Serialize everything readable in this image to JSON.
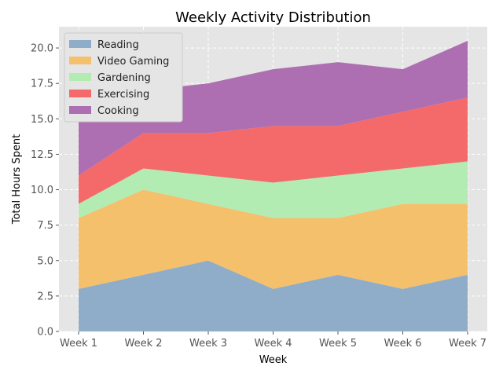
{
  "chart_data": {
    "type": "area",
    "stacked": true,
    "title": "Weekly Activity Distribution",
    "xlabel": "Week",
    "ylabel": "Total Hours Spent",
    "categories": [
      "Week 1",
      "Week 2",
      "Week 3",
      "Week 4",
      "Week 5",
      "Week 6",
      "Week 7"
    ],
    "ylim": [
      0,
      21.5
    ],
    "yticks": [
      0.0,
      2.5,
      5.0,
      7.5,
      10.0,
      12.5,
      15.0,
      17.5,
      20.0
    ],
    "ytick_labels": [
      "0.0",
      "2.5",
      "5.0",
      "7.5",
      "10.0",
      "12.5",
      "15.0",
      "17.5",
      "20.0"
    ],
    "grid": true,
    "legend_position": "top-left",
    "series": [
      {
        "name": "Reading",
        "color": "#8fadc9",
        "values": [
          3,
          4,
          5,
          3,
          4,
          3,
          4
        ]
      },
      {
        "name": "Video Gaming",
        "color": "#f5c06b",
        "values": [
          5,
          6,
          4,
          5,
          4,
          6,
          5
        ]
      },
      {
        "name": "Gardening",
        "color": "#b3ecb3",
        "values": [
          1,
          1.5,
          2,
          2.5,
          3,
          2.5,
          3
        ]
      },
      {
        "name": "Exercising",
        "color": "#f46a6a",
        "values": [
          2,
          2.5,
          3,
          4,
          3.5,
          4,
          4.5
        ]
      },
      {
        "name": "Cooking",
        "color": "#ad6fb1",
        "values": [
          4,
          3,
          3.5,
          4,
          4.5,
          3,
          4
        ]
      }
    ]
  }
}
